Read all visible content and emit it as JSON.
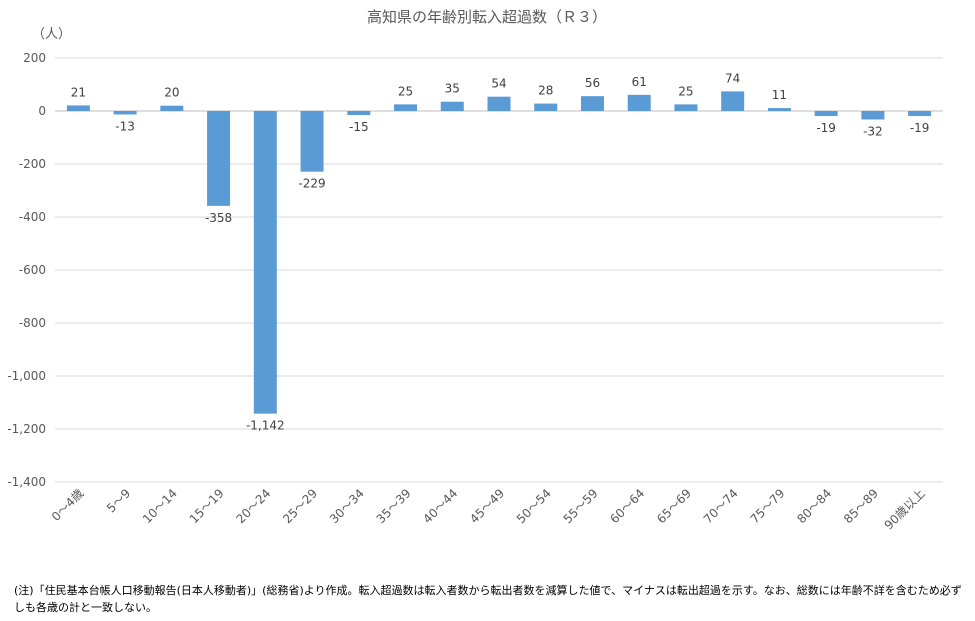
{
  "chart_data": {
    "type": "bar",
    "title": "高知県の年齢別転入超過数（Ｒ３）",
    "unit_label": "（人）",
    "categories": [
      "0～4歳",
      "5～9",
      "10～14",
      "15～19",
      "20～24",
      "25～29",
      "30～34",
      "35～39",
      "40～44",
      "45～49",
      "50～54",
      "55～59",
      "60～64",
      "65～69",
      "70～74",
      "75～79",
      "80～84",
      "85～89",
      "90歳以上"
    ],
    "values": [
      21,
      -13,
      20,
      -358,
      -1142,
      -229,
      -15,
      25,
      35,
      54,
      28,
      56,
      61,
      25,
      74,
      11,
      -19,
      -32,
      -19
    ],
    "data_labels": [
      "21",
      "-13",
      "20",
      "-358",
      "-1,142",
      "-229",
      "-15",
      "25",
      "35",
      "54",
      "28",
      "56",
      "61",
      "25",
      "74",
      "11",
      "-19",
      "-32",
      "-19"
    ],
    "ylim": [
      -1400,
      200
    ],
    "yticks": [
      200,
      0,
      -200,
      -400,
      -600,
      -800,
      -1000,
      -1200,
      -1400
    ],
    "ytick_labels": [
      "200",
      "0",
      "-200",
      "-400",
      "-600",
      "-800",
      "-1,000",
      "-1,200",
      "-1,400"
    ],
    "grid": true,
    "bar_color": "#5b9bd5"
  },
  "note": "(注)「住民基本台帳人口移動報告(日本人移動者)」(総務省)より作成。転入超過数は転入者数から転出者数を減算した値で、マイナスは転出超過を示す。なお、総数には年齢不詳を含むため必ずしも各歳の計と一致しない。"
}
